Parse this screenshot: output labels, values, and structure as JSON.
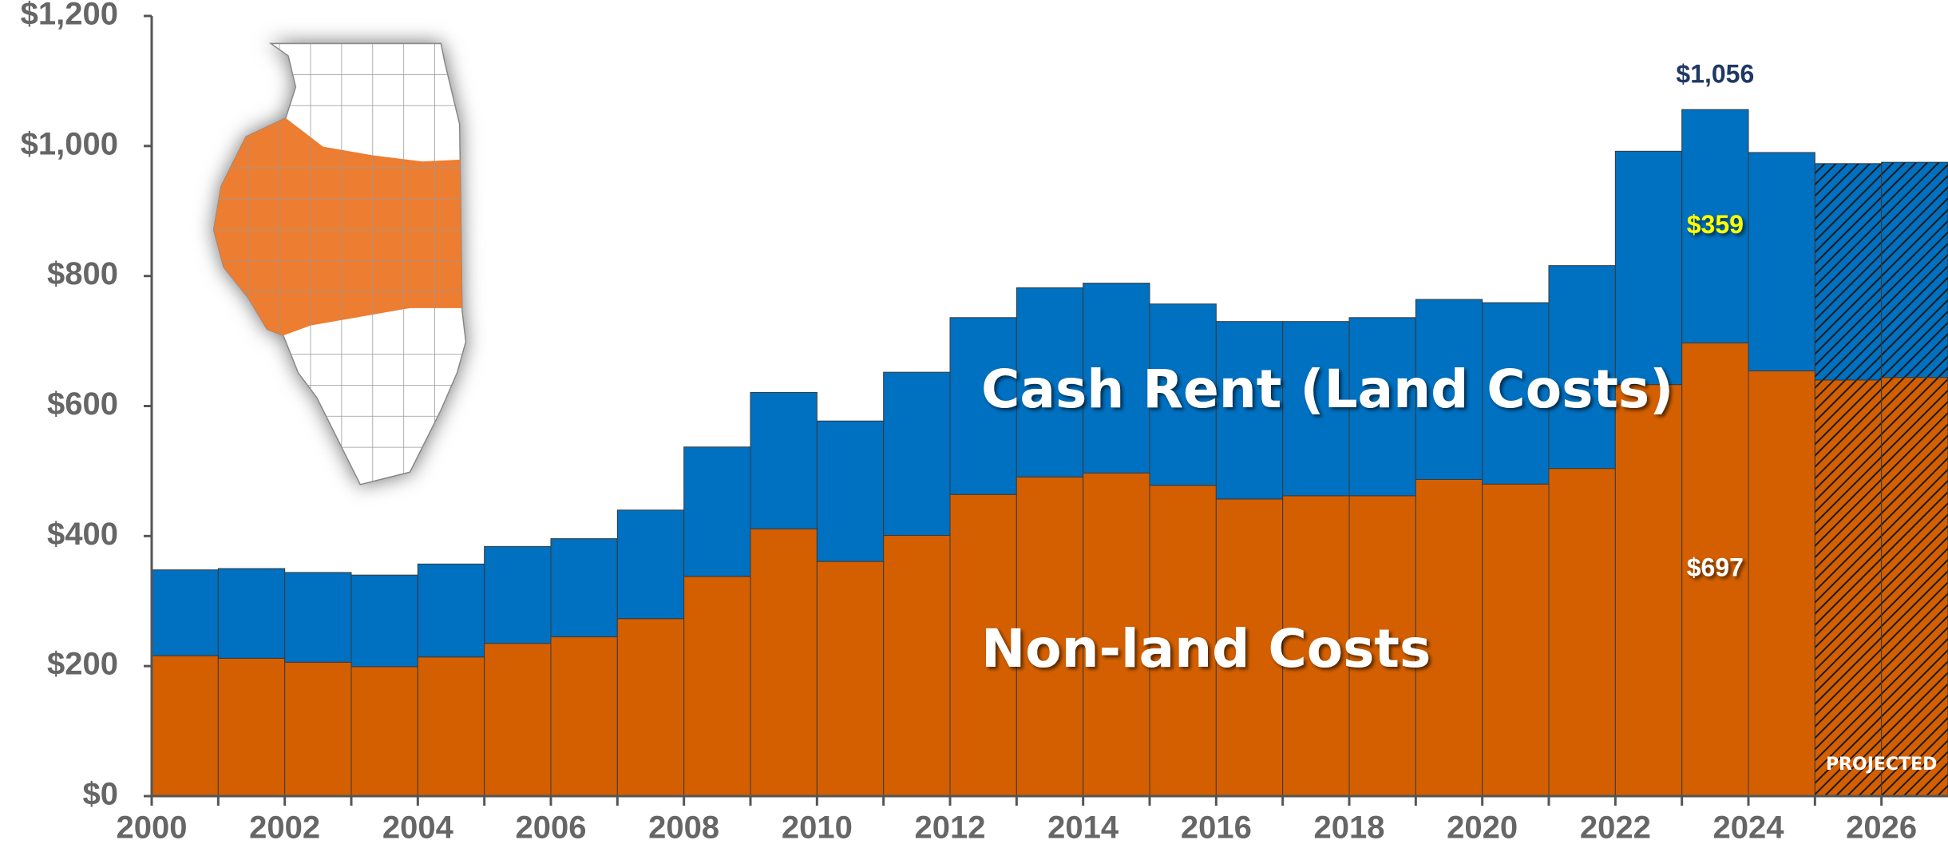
{
  "chart_data": {
    "type": "stacked_bar",
    "categories": [
      "2000",
      null,
      "2002",
      null,
      "2004",
      null,
      "2006",
      null,
      "2008",
      null,
      "2010",
      null,
      "2012",
      null,
      "2014",
      null,
      "2016",
      null,
      "2018",
      null,
      "2020",
      null,
      "2022",
      null,
      "2024",
      null,
      "2026"
    ],
    "series": [
      {
        "name": "Non-land Costs",
        "color": "#d35f00",
        "value_label_color": "#ffffff",
        "values": [
          216,
          212,
          206,
          199,
          214,
          235,
          245,
          273,
          338,
          411,
          361,
          401,
          464,
          491,
          497,
          478,
          457,
          462,
          462,
          487,
          480,
          504,
          633,
          697,
          654,
          640,
          644
        ],
        "value_labels": [
          null,
          null,
          null,
          null,
          null,
          null,
          null,
          null,
          null,
          null,
          null,
          null,
          null,
          null,
          null,
          null,
          null,
          null,
          null,
          null,
          null,
          null,
          null,
          "$697",
          null,
          null,
          null
        ]
      },
      {
        "name": "Cash Rent (Land Costs)",
        "color": "#0070c0",
        "value_label_color": "#ffff00",
        "values": [
          132,
          138,
          138,
          141,
          143,
          149,
          151,
          167,
          199,
          210,
          216,
          251,
          272,
          291,
          292,
          279,
          273,
          268,
          274,
          277,
          279,
          312,
          359,
          359,
          336,
          333,
          331
        ],
        "value_labels": [
          null,
          null,
          null,
          null,
          null,
          null,
          null,
          null,
          null,
          null,
          null,
          null,
          null,
          null,
          null,
          null,
          null,
          null,
          null,
          null,
          null,
          null,
          null,
          "$359",
          null,
          null,
          null
        ]
      }
    ],
    "total_value_labels": [
      null,
      null,
      null,
      null,
      null,
      null,
      null,
      null,
      null,
      null,
      null,
      null,
      null,
      null,
      null,
      null,
      null,
      null,
      null,
      null,
      null,
      null,
      null,
      "$1,056",
      null,
      null,
      null
    ],
    "total_label_color": "#1f3864",
    "projected": [
      false,
      false,
      false,
      false,
      false,
      false,
      false,
      false,
      false,
      false,
      false,
      false,
      false,
      false,
      false,
      false,
      false,
      false,
      false,
      false,
      false,
      false,
      false,
      false,
      false,
      true,
      true
    ],
    "projected_label": "PROJECTED",
    "ylim": [
      0,
      1200
    ],
    "yticks": [
      {
        "value": 0,
        "label": "$0"
      },
      {
        "value": 200,
        "label": "$200"
      },
      {
        "value": 400,
        "label": "$400"
      },
      {
        "value": 600,
        "label": "$600"
      },
      {
        "value": 800,
        "label": "$800"
      },
      {
        "value": 1000,
        "label": "$1,000"
      },
      {
        "value": 1200,
        "label": "$1,200"
      }
    ],
    "grid": false
  }
}
